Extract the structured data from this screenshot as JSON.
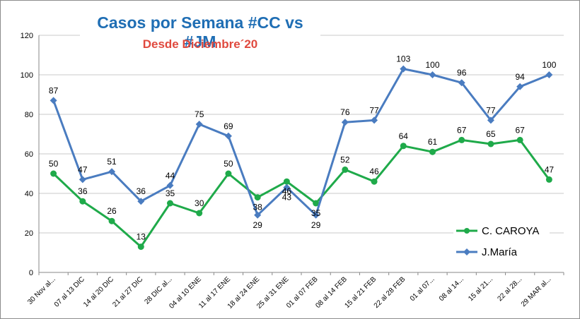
{
  "colors": {
    "caroya": "#1faa4a",
    "jmaria": "#4a7cc0",
    "title": "#1f6eb4",
    "subtitle": "#e0493e",
    "grid": "#c8c8c8"
  },
  "chart_data": {
    "type": "line",
    "title": "Casos por Semana #CC vs #JM",
    "subtitle": "Desde Diciembre´20",
    "xlabel": "",
    "ylabel": "",
    "ylim": [
      0,
      120
    ],
    "yticks": [
      0,
      20,
      40,
      60,
      80,
      100,
      120
    ],
    "grid": true,
    "legend_position": "bottom-right",
    "categories": [
      "30 Nov al...",
      "07 al 13 DIC",
      "14 al 20 DIC",
      "21 al 27 DIC",
      "28 DIC al...",
      "04 al 10 ENE",
      "11 al 17 ENE",
      "18 al 24 ENE",
      "25 al 31 ENE",
      "01 al 07 FEB",
      "08 al 14 FEB",
      "15 al 21 FEB",
      "22 al 28 FEB",
      "01 al 07...",
      "08 al 14...",
      "15 al 21...",
      "22 al 28...",
      "29 MAR al..."
    ],
    "series": [
      {
        "name": "C. CAROYA",
        "key": "caroya",
        "values": [
          50,
          36,
          26,
          13,
          35,
          30,
          50,
          38,
          46,
          35,
          52,
          46,
          64,
          61,
          67,
          65,
          67,
          47
        ]
      },
      {
        "name": "J.María",
        "key": "jmaria",
        "values": [
          87,
          47,
          51,
          36,
          44,
          75,
          69,
          29,
          43,
          29,
          76,
          77,
          103,
          100,
          96,
          77,
          94,
          100
        ]
      }
    ]
  }
}
